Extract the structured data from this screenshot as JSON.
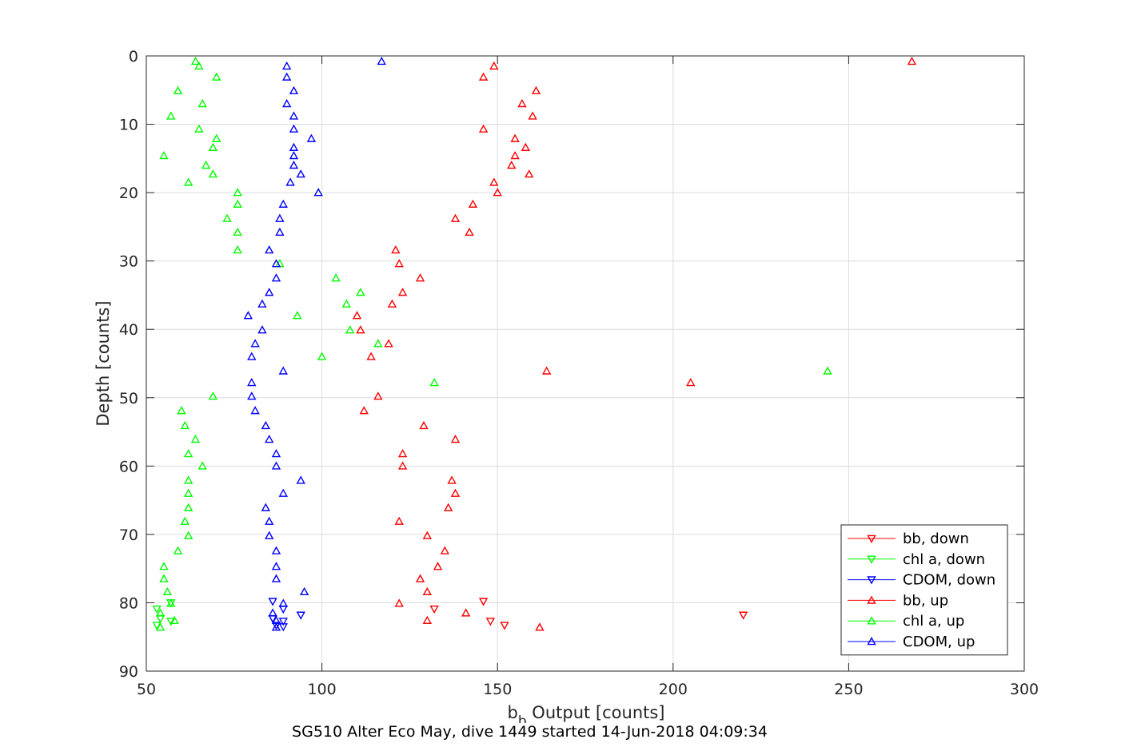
{
  "caption": "SG510 Alter Eco May, dive 1449 started 14-Jun-2018 04:09:34",
  "chart_data": {
    "type": "scatter",
    "title": "",
    "xlabel": "b_b Output [counts]",
    "xlabel_parts": {
      "base": "b",
      "sub": "b",
      "rest": " Output [counts]"
    },
    "ylabel": "Depth [counts]",
    "xlim": [
      50,
      300
    ],
    "ylim": [
      0,
      90
    ],
    "y_reversed": true,
    "xticks": [
      50,
      100,
      150,
      200,
      250,
      300
    ],
    "yticks": [
      0,
      10,
      20,
      30,
      40,
      50,
      60,
      70,
      80,
      90
    ],
    "grid": true,
    "legend_position": "bottom-right",
    "series": [
      {
        "name": "bb, down",
        "color": "#ff0000",
        "marker": "triangle-down",
        "points": [
          [
            146,
            79.8
          ],
          [
            220,
            81.8
          ],
          [
            132,
            80.9
          ],
          [
            148,
            82.7
          ],
          [
            152,
            83.3
          ]
        ]
      },
      {
        "name": "chl a, down",
        "color": "#00ff00",
        "marker": "triangle-down",
        "points": [
          [
            53,
            80.9
          ],
          [
            57,
            80.0
          ],
          [
            54,
            82.3
          ],
          [
            57,
            82.7
          ],
          [
            53,
            83.3
          ]
        ]
      },
      {
        "name": "CDOM, down",
        "color": "#0000ff",
        "marker": "triangle-down",
        "points": [
          [
            86,
            79.8
          ],
          [
            89,
            80.9
          ],
          [
            94,
            81.8
          ],
          [
            86,
            82.3
          ],
          [
            89,
            82.7
          ],
          [
            87,
            83.3
          ],
          [
            89,
            83.5
          ]
        ]
      },
      {
        "name": "bb, up",
        "color": "#ff0000",
        "marker": "triangle-up",
        "points": [
          [
            268,
            0.8
          ],
          [
            149,
            1.5
          ],
          [
            146,
            3.1
          ],
          [
            161,
            5.1
          ],
          [
            157,
            7.0
          ],
          [
            160,
            8.8
          ],
          [
            146,
            10.7
          ],
          [
            155,
            12.1
          ],
          [
            158,
            13.4
          ],
          [
            155,
            14.6
          ],
          [
            154,
            16.0
          ],
          [
            159,
            17.3
          ],
          [
            149,
            18.5
          ],
          [
            150,
            20.0
          ],
          [
            143,
            21.7
          ],
          [
            138,
            23.8
          ],
          [
            142,
            25.8
          ],
          [
            121,
            28.4
          ],
          [
            122,
            30.4
          ],
          [
            128,
            32.5
          ],
          [
            123,
            34.6
          ],
          [
            120,
            36.3
          ],
          [
            110,
            38.0
          ],
          [
            111,
            40.1
          ],
          [
            119,
            42.1
          ],
          [
            114,
            44.0
          ],
          [
            164,
            46.1
          ],
          [
            205,
            47.8
          ],
          [
            116,
            49.8
          ],
          [
            112,
            51.9
          ],
          [
            129,
            54.1
          ],
          [
            138,
            56.1
          ],
          [
            123,
            58.2
          ],
          [
            123,
            60.0
          ],
          [
            137,
            62.1
          ],
          [
            138,
            64.0
          ],
          [
            136,
            66.1
          ],
          [
            122,
            68.1
          ],
          [
            130,
            70.2
          ],
          [
            135,
            72.4
          ],
          [
            133,
            74.7
          ],
          [
            128,
            76.5
          ],
          [
            130,
            78.4
          ],
          [
            122,
            80.1
          ],
          [
            141,
            81.5
          ],
          [
            130,
            82.6
          ],
          [
            162,
            83.6
          ]
        ]
      },
      {
        "name": "chl a, up",
        "color": "#00ff00",
        "marker": "triangle-up",
        "points": [
          [
            64,
            0.8
          ],
          [
            65,
            1.5
          ],
          [
            70,
            3.1
          ],
          [
            59,
            5.1
          ],
          [
            66,
            7.0
          ],
          [
            57,
            8.8
          ],
          [
            65,
            10.7
          ],
          [
            70,
            12.1
          ],
          [
            69,
            13.4
          ],
          [
            55,
            14.6
          ],
          [
            67,
            16.0
          ],
          [
            69,
            17.3
          ],
          [
            62,
            18.5
          ],
          [
            76,
            20.0
          ],
          [
            76,
            21.7
          ],
          [
            73,
            23.8
          ],
          [
            76,
            25.8
          ],
          [
            76,
            28.4
          ],
          [
            88,
            30.4
          ],
          [
            104,
            32.5
          ],
          [
            111,
            34.6
          ],
          [
            107,
            36.3
          ],
          [
            93,
            38.0
          ],
          [
            108,
            40.1
          ],
          [
            116,
            42.1
          ],
          [
            100,
            44.0
          ],
          [
            244,
            46.1
          ],
          [
            132,
            47.8
          ],
          [
            69,
            49.8
          ],
          [
            60,
            51.9
          ],
          [
            61,
            54.1
          ],
          [
            64,
            56.1
          ],
          [
            62,
            58.2
          ],
          [
            66,
            60.0
          ],
          [
            62,
            62.1
          ],
          [
            62,
            64.0
          ],
          [
            62,
            66.1
          ],
          [
            61,
            68.1
          ],
          [
            62,
            70.2
          ],
          [
            59,
            72.4
          ],
          [
            55,
            74.7
          ],
          [
            55,
            76.5
          ],
          [
            56,
            78.4
          ],
          [
            57,
            80.1
          ],
          [
            54,
            81.5
          ],
          [
            58,
            82.6
          ],
          [
            54,
            83.6
          ]
        ]
      },
      {
        "name": "CDOM, up",
        "color": "#0000ff",
        "marker": "triangle-up",
        "points": [
          [
            117,
            0.8
          ],
          [
            90,
            1.5
          ],
          [
            90,
            3.1
          ],
          [
            92,
            5.1
          ],
          [
            90,
            7.0
          ],
          [
            92,
            8.8
          ],
          [
            92,
            10.7
          ],
          [
            97,
            12.1
          ],
          [
            92,
            13.4
          ],
          [
            92,
            14.6
          ],
          [
            92,
            16.0
          ],
          [
            94,
            17.3
          ],
          [
            91,
            18.5
          ],
          [
            99,
            20.0
          ],
          [
            89,
            21.7
          ],
          [
            88,
            23.8
          ],
          [
            88,
            25.8
          ],
          [
            85,
            28.4
          ],
          [
            87,
            30.4
          ],
          [
            87,
            32.5
          ],
          [
            85,
            34.6
          ],
          [
            83,
            36.3
          ],
          [
            79,
            38.0
          ],
          [
            83,
            40.1
          ],
          [
            81,
            42.1
          ],
          [
            80,
            44.0
          ],
          [
            89,
            46.1
          ],
          [
            80,
            47.8
          ],
          [
            80,
            49.8
          ],
          [
            81,
            51.9
          ],
          [
            84,
            54.1
          ],
          [
            85,
            56.1
          ],
          [
            87,
            58.2
          ],
          [
            87,
            60.0
          ],
          [
            94,
            62.1
          ],
          [
            89,
            64.0
          ],
          [
            84,
            66.1
          ],
          [
            85,
            68.1
          ],
          [
            85,
            70.2
          ],
          [
            87,
            72.4
          ],
          [
            87,
            74.7
          ],
          [
            87,
            76.5
          ],
          [
            95,
            78.4
          ],
          [
            89,
            80.1
          ],
          [
            86,
            81.5
          ],
          [
            87,
            82.6
          ],
          [
            87,
            83.6
          ]
        ]
      }
    ]
  }
}
